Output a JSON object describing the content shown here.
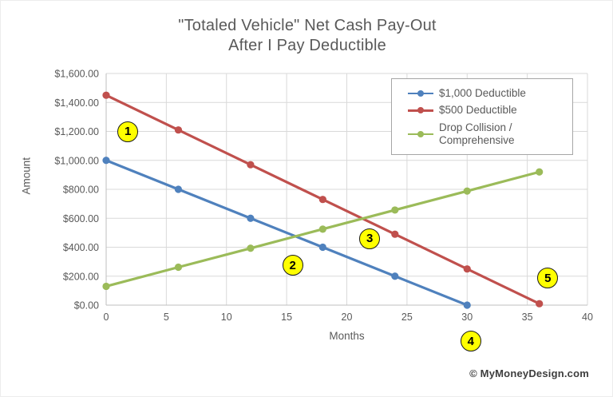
{
  "title": {
    "line1": "\"Totaled Vehicle\" Net Cash Pay-Out",
    "line2": "After I Pay Deductible"
  },
  "watermark": "© MyMoneyDesign.com",
  "chart_data": {
    "type": "line",
    "title": "\"Totaled Vehicle\" Net Cash Pay-Out After I Pay Deductible",
    "xlabel": "Months",
    "ylabel": "Amount",
    "xlim": [
      0,
      40
    ],
    "ylim": [
      0,
      1600
    ],
    "xticks": [
      0,
      5,
      10,
      15,
      20,
      25,
      30,
      35,
      40
    ],
    "yticks": [
      0,
      200,
      400,
      600,
      800,
      1000,
      1200,
      1400,
      1600
    ],
    "ytick_labels": [
      "$0.00",
      "$200.00",
      "$400.00",
      "$600.00",
      "$800.00",
      "$1,000.00",
      "$1,200.00",
      "$1,400.00",
      "$1,600.00"
    ],
    "grid": true,
    "legend_position": "top-right",
    "series": [
      {
        "name": "$1,000 Deductible",
        "color": "#4F81BD",
        "x": [
          0,
          6,
          12,
          18,
          24,
          30
        ],
        "y": [
          1000,
          800,
          600,
          400,
          200,
          0
        ]
      },
      {
        "name": "$500 Deductible",
        "color": "#C0504D",
        "x": [
          0,
          6,
          12,
          18,
          24,
          30,
          36
        ],
        "y": [
          1450,
          1210,
          970,
          730,
          490,
          250,
          10
        ]
      },
      {
        "name": "Drop Collision / Comprehensive",
        "color": "#9BBB59",
        "x": [
          0,
          6,
          12,
          18,
          24,
          30,
          36
        ],
        "y": [
          130,
          262,
          393,
          525,
          657,
          788,
          920
        ]
      }
    ],
    "annotations": [
      {
        "label": "1",
        "at_month": 1.8,
        "at_value": 1200
      },
      {
        "label": "2",
        "at_month": 15.5,
        "at_value": 275
      },
      {
        "label": "3",
        "at_month": 21.9,
        "at_value": 460
      },
      {
        "label": "4",
        "at_month": 30.3,
        "at_value": -250
      },
      {
        "label": "5",
        "at_month": 36.7,
        "at_value": 185
      }
    ],
    "annotation_style": {
      "fill": "#FFFF00",
      "border": "#1a1a1a",
      "text_color": "#000000"
    },
    "colors": {
      "gridline": "#d9d9d9",
      "axis_line": "#bfbfbf",
      "tick_text": "#595959",
      "title_text": "#595959"
    }
  }
}
